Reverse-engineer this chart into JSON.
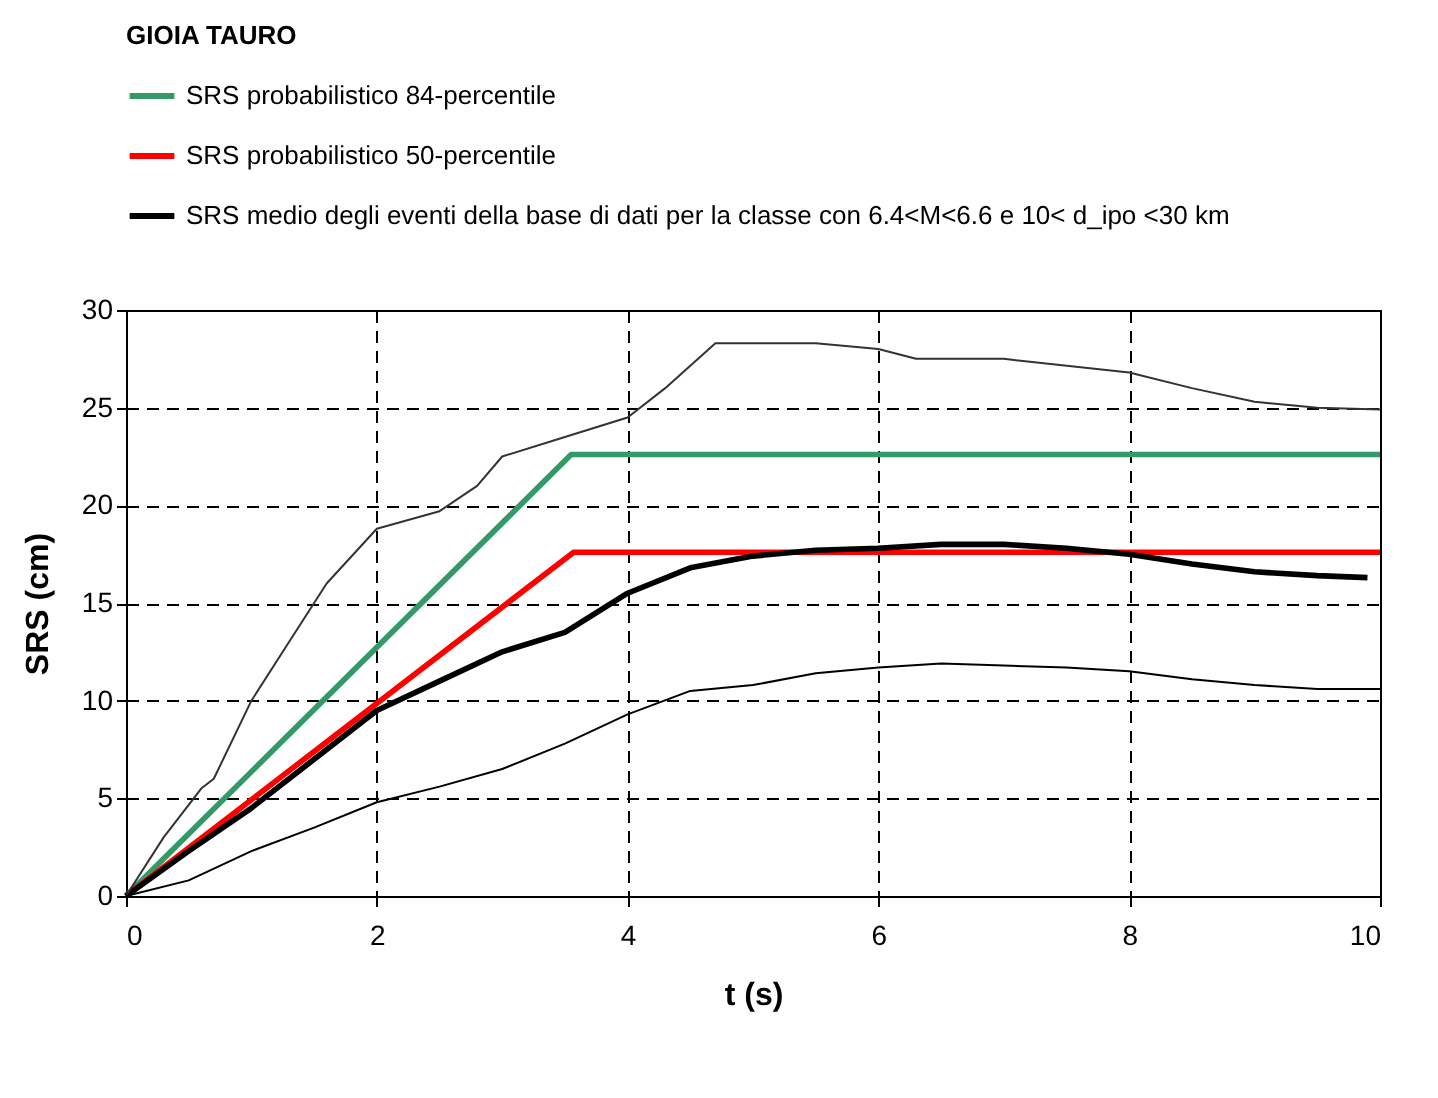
{
  "chart_data": {
    "type": "line",
    "title": "GIOIA TAURO",
    "xlabel": "t (s)",
    "ylabel": "SRS (cm)",
    "xlim": [
      0,
      10
    ],
    "xticks": [
      0,
      2,
      4,
      6,
      8,
      10
    ],
    "ylim": [
      0,
      30
    ],
    "yticks": [
      0,
      5,
      10,
      15,
      20,
      25,
      30
    ],
    "grid": true,
    "legend": "top",
    "line_style": "solid",
    "series": [
      {
        "name": "SRS probabilistico 84-percentile",
        "color": "#339966",
        "x": [
          0,
          3.55,
          10
        ],
        "values": [
          0,
          22.6,
          22.6
        ]
      },
      {
        "name": "SRS probabilistico 50-percentile",
        "color": "#ff0000",
        "x": [
          0,
          3.57,
          10
        ],
        "values": [
          0,
          17.6,
          17.6
        ]
      },
      {
        "name": "SRS medio degli eventi della base di dati per la classe con 6.4<M<6.6 e 10< d_ipo <30 km",
        "color": "#000000",
        "x": [
          0,
          0.5,
          1,
          1.5,
          2,
          2.5,
          3,
          3.5,
          4,
          4.5,
          5,
          5.5,
          6,
          6.5,
          7,
          7.5,
          8,
          8.5,
          9,
          9.5,
          9.9
        ],
        "values": [
          0,
          2.3,
          4.5,
          7,
          9.5,
          11,
          12.5,
          13.5,
          15.5,
          16.8,
          17.4,
          17.7,
          17.8,
          18,
          18,
          17.8,
          17.5,
          17,
          16.6,
          16.4,
          16.3
        ]
      },
      {
        "color": "#333333",
        "x": [
          0,
          0.3,
          0.6,
          0.7,
          1,
          1.3,
          1.6,
          2,
          2.5,
          2.8,
          3,
          3.5,
          4,
          4.3,
          4.7,
          5.5,
          6,
          6.3,
          7,
          8,
          8.5,
          9,
          9.5,
          10
        ],
        "values": [
          0,
          3,
          5.5,
          6,
          10,
          13,
          16,
          18.8,
          19.7,
          21,
          22.5,
          23.5,
          24.5,
          26,
          28.3,
          28.3,
          28,
          27.5,
          27.5,
          26.8,
          26,
          25.3,
          25,
          24.9
        ]
      },
      {
        "color": "#000000",
        "x": [
          0,
          0.5,
          1,
          1.5,
          2,
          2.5,
          3,
          3.5,
          4,
          4.5,
          5,
          5.5,
          6,
          6.5,
          7,
          7.5,
          8,
          8.5,
          9,
          9.5,
          10
        ],
        "values": [
          0,
          0.8,
          2.3,
          3.5,
          4.8,
          5.6,
          6.5,
          7.8,
          9.3,
          10.5,
          10.8,
          11.4,
          11.7,
          11.9,
          11.8,
          11.7,
          11.5,
          11.1,
          10.8,
          10.6,
          10.6
        ]
      }
    ]
  }
}
